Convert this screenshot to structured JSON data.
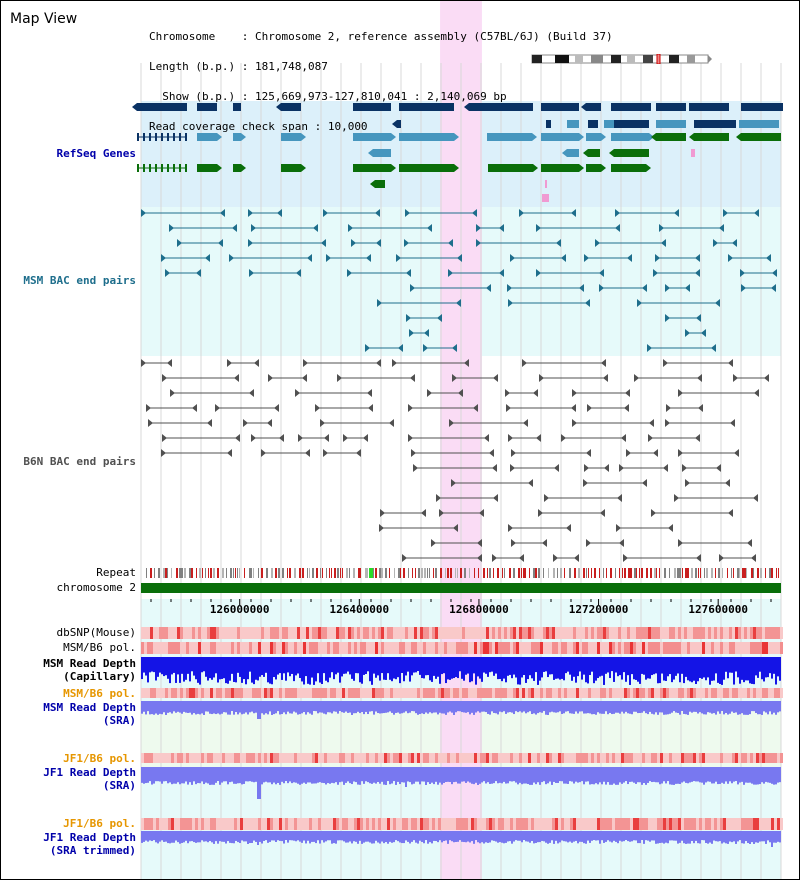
{
  "title": "Map View",
  "info": {
    "chromosome_label": "Chromosome    ",
    "chromosome_value": ": Chromosome 2, reference assembly (C57BL/6J) (Build 37)",
    "length_label": "Length (b.p.) ",
    "length_value": ": 181,748,087",
    "show_label": "  Show (b.p.) ",
    "show_value": ": 125,669,973-127,810,041 : 2,140,069 bp",
    "coverage_label": "Read coverage check span ",
    "coverage_value": ": 10,000"
  },
  "tracks": {
    "refseq": "RefSeq Genes",
    "msm_bac": "MSM BAC end pairs",
    "b6n_bac": "B6N BAC end pairs",
    "repeat": "Repeat",
    "chromosome": "chromosome 2",
    "dbsnp": "dbSNP(Mouse)",
    "msm_b6_pol": "MSM/B6 pol.",
    "msm_read_depth_capillary_1": "MSM Read Depth",
    "msm_read_depth_capillary_2": "(Capillary)",
    "msm_b6_pol_2": "MSM/B6 pol.",
    "msm_read_depth_sra_1": "MSM Read Depth",
    "msm_read_depth_sra_2": "(SRA)",
    "jf1_b6_pol": "JF1/B6 pol.",
    "jf1_read_depth_sra_1": "JF1 Read Depth",
    "jf1_read_depth_sra_2": "(SRA)",
    "jf1_b6_pol_2": "JF1/B6 pol.",
    "jf1_read_depth_trimmed_1": "JF1 Read Depth",
    "jf1_read_depth_trimmed_2": "(SRA trimmed)"
  },
  "axis": {
    "range_bp": [
      125669973,
      127810041
    ],
    "ticks": [
      "126000000",
      "126400000",
      "126800000",
      "127200000",
      "127600000"
    ],
    "tick_values": [
      126000000,
      126400000,
      126800000,
      127200000,
      127600000
    ]
  },
  "highlight_bp": [
    126669973,
    126810041
  ],
  "colors": {
    "refseq_bg": "#dcf0fa",
    "bac_bg": "#e6fafa",
    "highlight": "#fadcf5",
    "dark_blue": "#0a3264",
    "mid_blue": "#4696be",
    "green": "#0a6e0a",
    "msm_bac": "#1e6e8c",
    "b6n_bac": "#505050",
    "chromosome": "#0a6e0a",
    "capillary_depth": "#1414e6",
    "sra_depth": "#7878f0",
    "label_blue": "#0000aa",
    "label_orange": "#e69600",
    "label_teal": "#1e6e8c"
  },
  "chart_data": {
    "type": "genome-browser",
    "chromosome": "Chromosome 2",
    "assembly": "C57BL/6J (Build 37)",
    "start": 125669973,
    "end": 127810041,
    "span": 2140069,
    "coverage_span": 10000
  }
}
